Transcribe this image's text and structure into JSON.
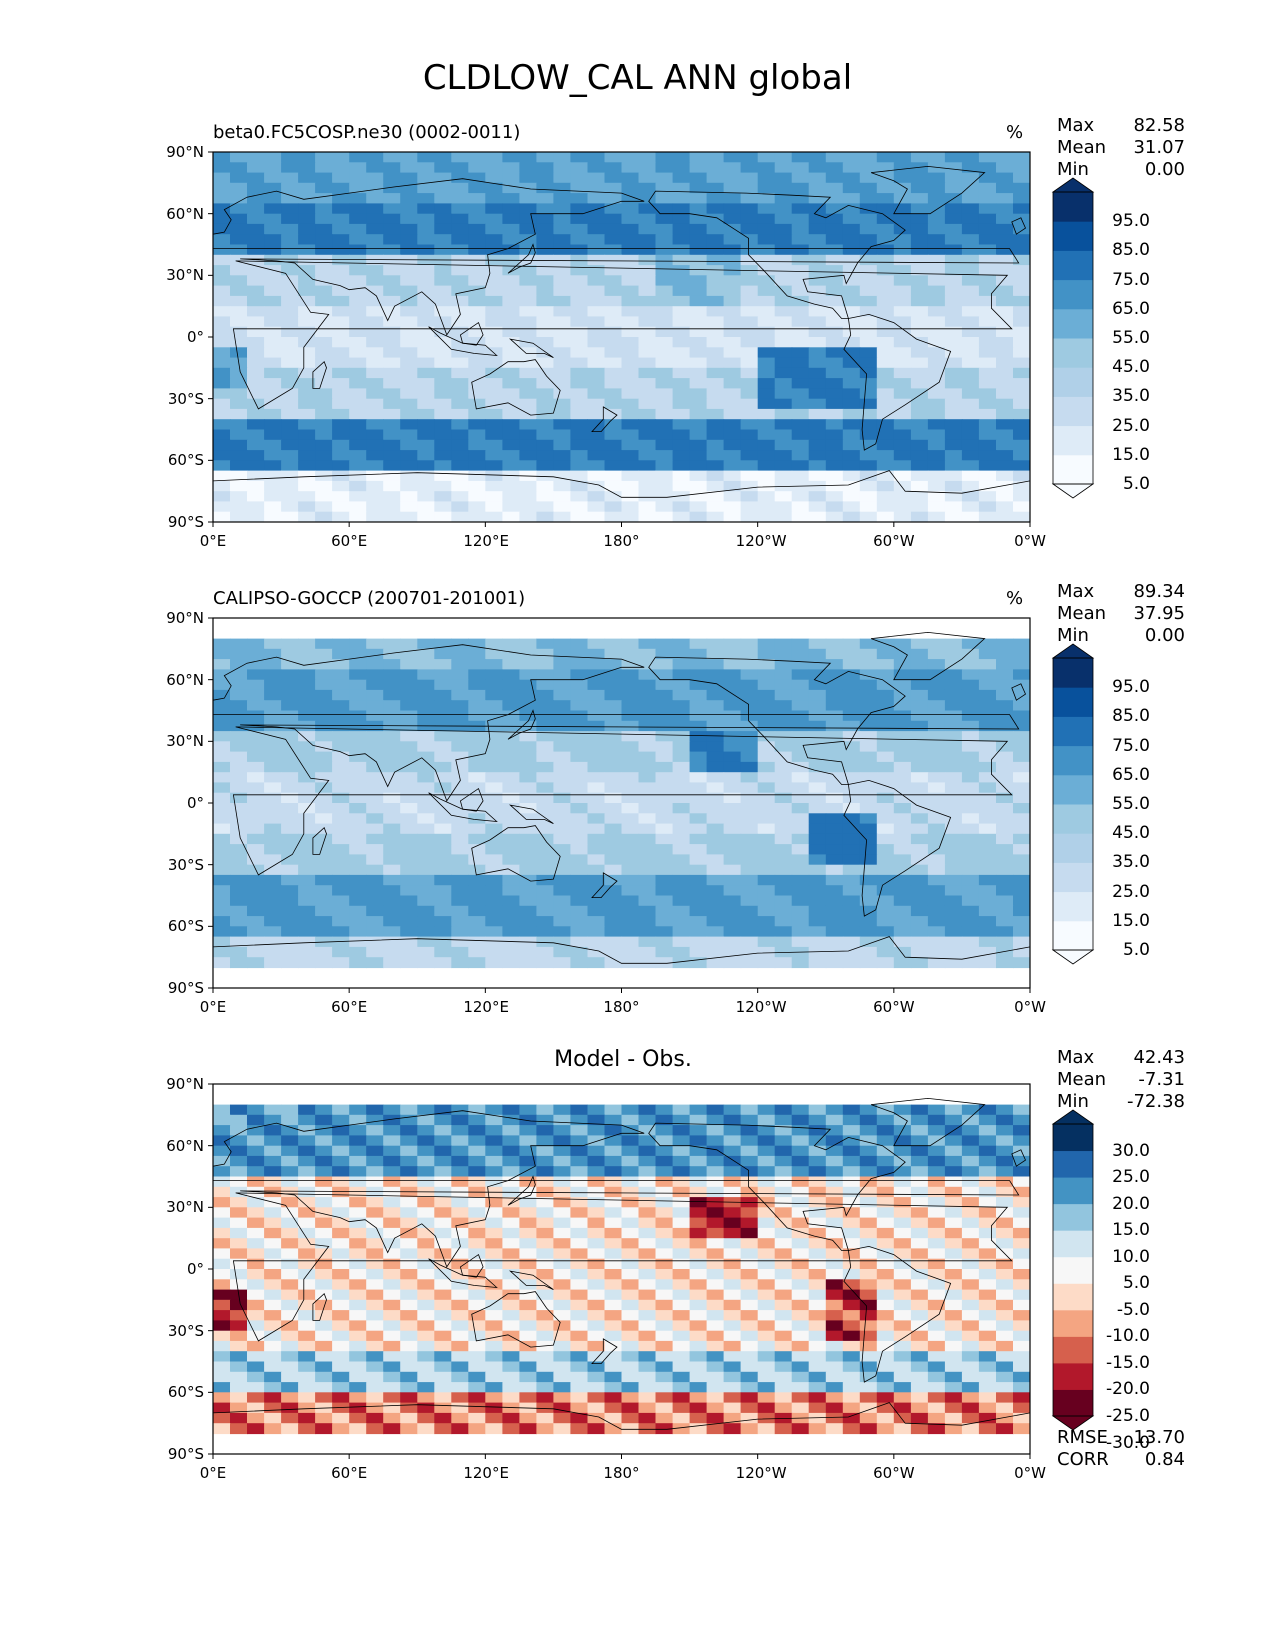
{
  "title": "CLDLOW_CAL ANN global",
  "colors": {
    "blues": [
      "#f7fbff",
      "#deebf7",
      "#c6dbef",
      "#9ecae1",
      "#6baed6",
      "#4292c6",
      "#2171b5",
      "#08519c",
      "#08306b"
    ],
    "diverging": [
      "#67001f",
      "#b2182b",
      "#d6604d",
      "#f4a582",
      "#fddbc7",
      "#f7f7f7",
      "#d1e5f0",
      "#92c5de",
      "#4393c3",
      "#2166ac",
      "#053061"
    ],
    "land_outline": "#000000"
  },
  "panels": [
    {
      "label": "beta0.FC5COSP.ne30 (0002-0011)",
      "unit": "%",
      "center_title": "",
      "stats": {
        "max_label": "Max",
        "max": "82.58",
        "mean_label": "Mean",
        "mean": "31.07",
        "min_label": "Min",
        "min": "0.00"
      },
      "colormap": "blues",
      "legend_ticks": [
        "95.0",
        "85.0",
        "75.0",
        "65.0",
        "55.0",
        "45.0",
        "35.0",
        "25.0",
        "15.0",
        "5.0"
      ]
    },
    {
      "label": "CALIPSO-GOCCP (200701-201001)",
      "unit": "%",
      "center_title": "",
      "stats": {
        "max_label": "Max",
        "max": "89.34",
        "mean_label": "Mean",
        "mean": "37.95",
        "min_label": "Min",
        "min": "0.00"
      },
      "colormap": "blues",
      "legend_ticks": [
        "95.0",
        "85.0",
        "75.0",
        "65.0",
        "55.0",
        "45.0",
        "35.0",
        "25.0",
        "15.0",
        "5.0"
      ]
    },
    {
      "label": "",
      "unit": "",
      "center_title": "Model - Obs.",
      "stats": {
        "max_label": "Max",
        "max": "42.43",
        "mean_label": "Mean",
        "mean": "-7.31",
        "min_label": "Min",
        "min": "-72.38"
      },
      "colormap": "diverging",
      "legend_ticks": [
        "30.0",
        "25.0",
        "20.0",
        "15.0",
        "10.0",
        "5.0",
        "-5.0",
        "-10.0",
        "-15.0",
        "-20.0",
        "-25.0",
        "-30.0"
      ],
      "metrics": {
        "rmse_label": "RMSE",
        "rmse": "13.70",
        "corr_label": "CORR",
        "corr": "0.84"
      }
    }
  ],
  "axes": {
    "lat_ticks": [
      "90°N",
      "60°N",
      "30°N",
      "0°",
      "30°S",
      "60°S",
      "90°S"
    ],
    "lon_ticks": [
      "0°E",
      "60°E",
      "120°E",
      "180°",
      "120°W",
      "60°W",
      "0°W"
    ]
  }
}
